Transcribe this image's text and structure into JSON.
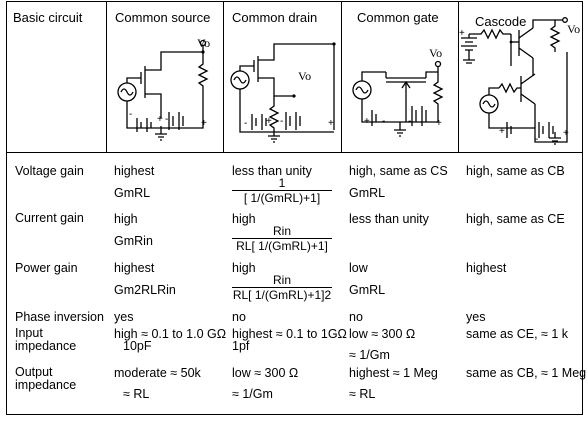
{
  "headers": {
    "basic": "Basic circuit",
    "cs": "Common source",
    "cd": "Common drain",
    "cg": "Common gate",
    "cascode": "Cascode"
  },
  "vo_label": "Vo",
  "rows": {
    "voltage_gain": {
      "label": "Voltage gain",
      "cs": [
        "highest",
        "GmRL"
      ],
      "cd_top": "less than unity",
      "cd_num": "1",
      "cd_den": "[ 1/(GmRL)+1]",
      "cg": [
        "high, same as CS",
        "GmRL"
      ],
      "cascode": "high, same as CB"
    },
    "current_gain": {
      "label": "Current gain",
      "cs": [
        "high",
        "GmRin"
      ],
      "cd_top": "high",
      "cd_num": "Rin",
      "cd_den": "RL[ 1/(GmRL)+1]",
      "cg": "less than unity",
      "cascode": "high, same as CE"
    },
    "power_gain": {
      "label": "Power gain",
      "cs": [
        "highest",
        "Gm2RLRin"
      ],
      "cd_top": "high",
      "cd_num": "Rin",
      "cd_den": "RL[ 1/(GmRL)+1]2",
      "cg": [
        "low",
        "GmRL"
      ],
      "cascode": "highest"
    },
    "phase_inversion": {
      "label": "Phase inversion",
      "cs": "yes",
      "cd": "no",
      "cg": "no",
      "cascode": "yes"
    },
    "input_impedance": {
      "label": "Input impedance",
      "cs": [
        "high ≈ 0.1 to 1.0 GΩ",
        "10pF"
      ],
      "cd": [
        "highest ≈ 0.1 to 1GΩ",
        "1pf"
      ],
      "cg": [
        "low ≈ 300 Ω",
        "≈ 1/Gm"
      ],
      "cascode": "same as CE,  ≈ 1 k"
    },
    "output_impedance": {
      "label": "Output impedance",
      "cs": [
        "moderate ≈ 50k",
        "≈ RL"
      ],
      "cd": [
        "low ≈ 300 Ω",
        "≈ 1/Gm"
      ],
      "cg": [
        "highest ≈ 1 Meg",
        "≈ RL"
      ],
      "cascode": "same as CB, ≈ 1 Meg"
    }
  }
}
